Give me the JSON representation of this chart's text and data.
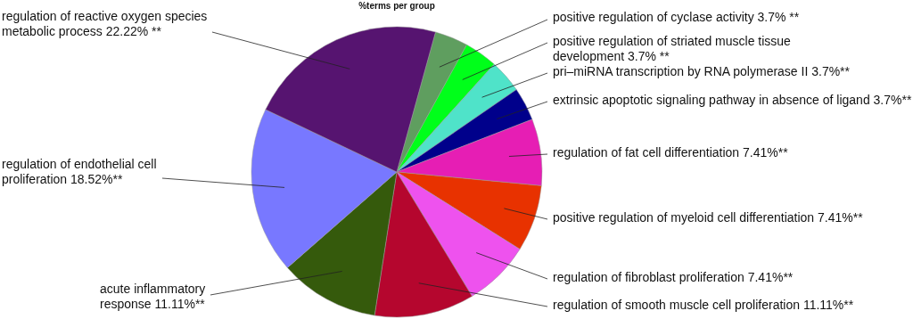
{
  "chart_data": {
    "type": "pie",
    "title": "%terms per group",
    "categories": [
      "positive regulation of cyclase activity",
      "positive regulation of striated muscle tissue\ndevelopment",
      "pri–miRNA transcription by RNA polymerase II",
      "extrinsic apoptotic signaling pathway in absence of ligand",
      "regulation of fat cell differentiation",
      "positive regulation of myeloid cell differentiation",
      "regulation of fibroblast proliferation",
      "regulation of smooth muscle cell proliferation",
      "acute inflammatory\nresponse",
      "regulation of endothelial cell\nproliferation",
      "regulation of reactive oxygen species\nmetabolic process"
    ],
    "values": [
      3.7,
      3.7,
      3.7,
      3.7,
      7.41,
      7.41,
      7.41,
      11.11,
      11.11,
      18.52,
      22.22
    ],
    "colors": [
      "#5f9e5f",
      "#00ff1a",
      "#4fe3c9",
      "#00008b",
      "#e61eb4",
      "#e83200",
      "#ee52ee",
      "#b5062e",
      "#355a0c",
      "#7878ff",
      "#561470"
    ],
    "value_labels": [
      "3.7% **",
      "3.7%      **",
      "3.7%**",
      "3.7%**",
      "7.41%**",
      "7.41%**",
      "7.41%**",
      "11.11%**",
      "11.11%**",
      "18.52%**",
      "22.22% **"
    ]
  }
}
